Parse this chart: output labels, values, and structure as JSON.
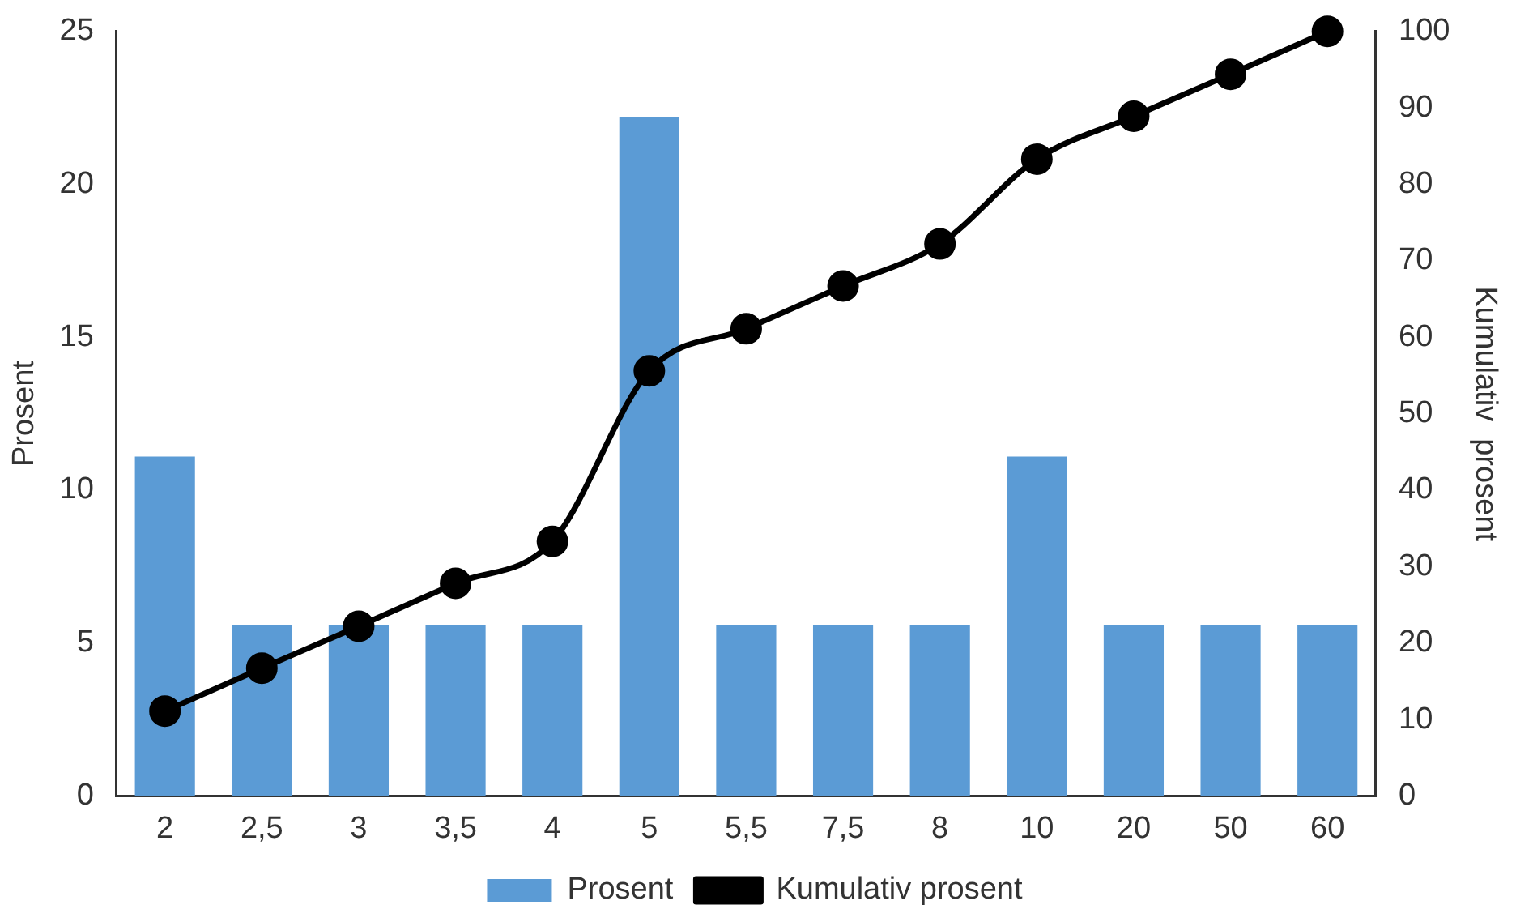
{
  "chart_data": {
    "type": "bar",
    "categories": [
      "2",
      "2,5",
      "3",
      "3,5",
      "4",
      "5",
      "5,5",
      "7,5",
      "8",
      "10",
      "20",
      "50",
      "60"
    ],
    "series": [
      {
        "name": "Prosent",
        "color": "#5b9bd5",
        "values": [
          11.1,
          5.6,
          5.6,
          5.6,
          5.6,
          22.2,
          5.6,
          5.6,
          5.6,
          11.1,
          5.6,
          5.6,
          5.6
        ]
      },
      {
        "name": "Kumulativ prosent",
        "type": "line",
        "axis": "y2",
        "color": "#000000",
        "values": [
          11.1,
          16.7,
          22.2,
          27.8,
          33.3,
          55.6,
          61.1,
          66.7,
          72.2,
          83.3,
          88.9,
          94.4,
          100
        ]
      }
    ],
    "ylabel": "Prosent",
    "y2label": "Kumulativ  prosent",
    "ylim": [
      0,
      25
    ],
    "yticks": [
      0,
      5,
      10,
      15,
      20,
      25
    ],
    "y2lim": [
      0,
      100
    ],
    "y2ticks": [
      0,
      10,
      20,
      30,
      40,
      50,
      60,
      70,
      80,
      90,
      100
    ],
    "grid": false,
    "legend": "bottom",
    "marker": "circle",
    "line_style": "solid"
  }
}
